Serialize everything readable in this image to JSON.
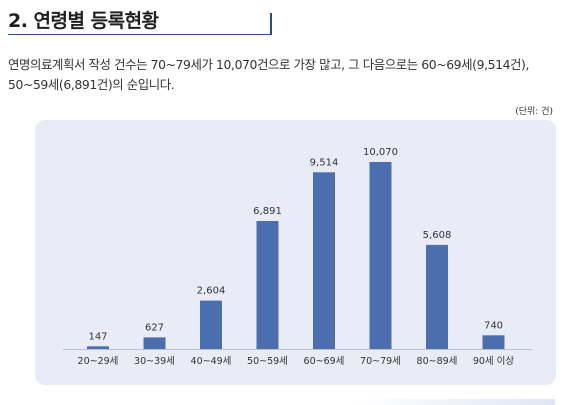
{
  "heading": {
    "title": "2. 연령별 등록현황"
  },
  "description": {
    "line1": "연명의료계획서 작성 건수는 70~79세가 10,070건으로 가장 많고, 그 다음으로는 60~69세(9,514건),",
    "line2": "50~59세(6,891건)의 순입니다."
  },
  "unit": "(단위: 건)",
  "colors": {
    "bar": "#4a6eae",
    "panel": "#e9ecf6",
    "accent": "#2a4a8a"
  },
  "chart_data": {
    "type": "bar",
    "categories": [
      "20~29세",
      "30~39세",
      "40~49세",
      "50~59세",
      "60~69세",
      "70~79세",
      "80~89세",
      "90세 이상"
    ],
    "values": [
      147,
      627,
      2604,
      6891,
      9514,
      10070,
      5608,
      740
    ],
    "value_labels": [
      "147",
      "627",
      "2,604",
      "6,891",
      "9,514",
      "10,070",
      "5,608",
      "740"
    ],
    "title": "",
    "xlabel": "",
    "ylabel": "",
    "ylim": [
      0,
      10070
    ],
    "grid": false,
    "legend": "none"
  }
}
